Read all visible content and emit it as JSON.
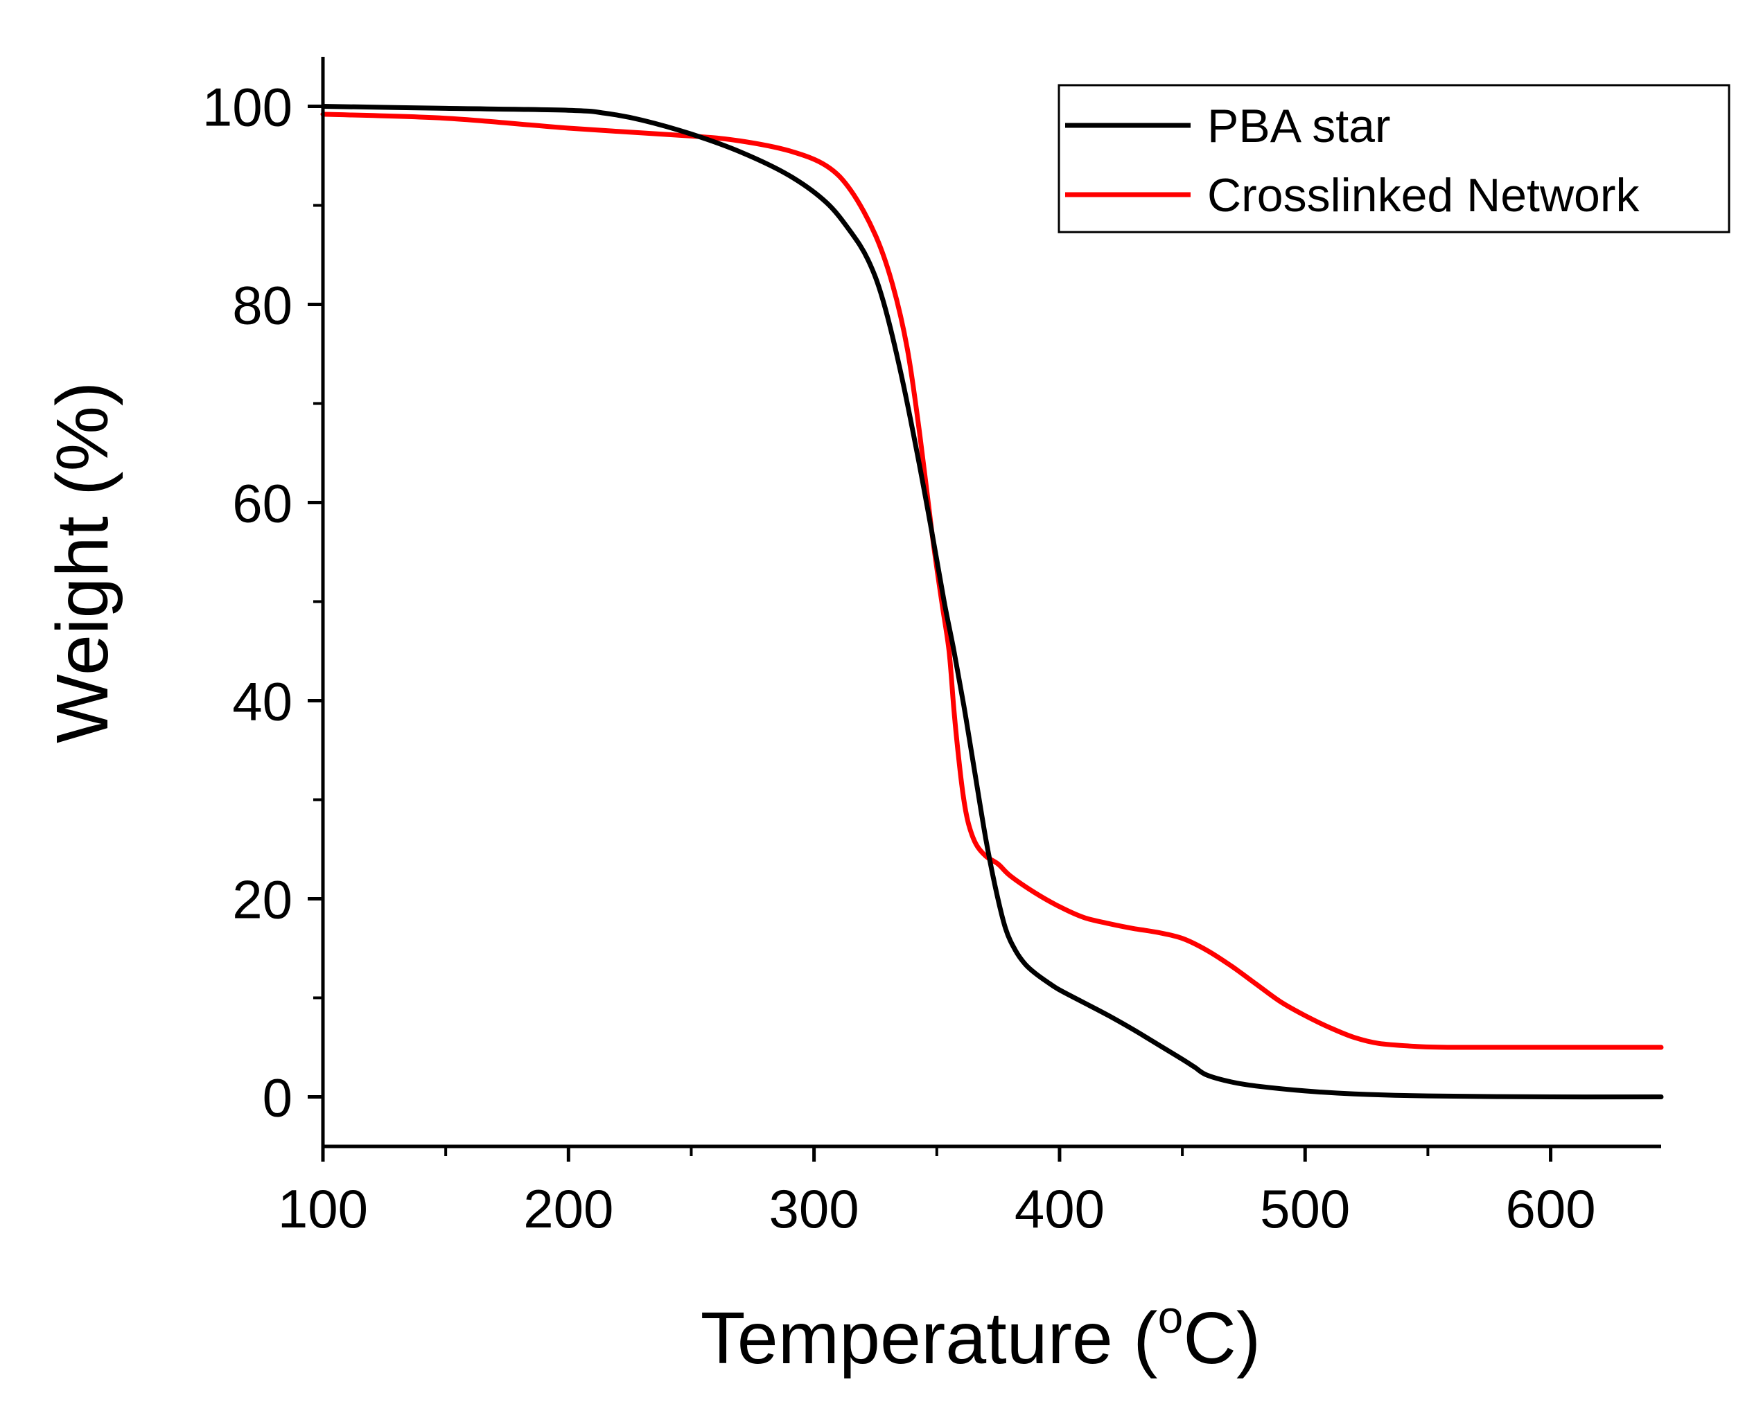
{
  "chart_data": {
    "type": "line",
    "title": "",
    "xlabel_main": "Temperature (",
    "xlabel_sup": "o",
    "xlabel_tail": "C)",
    "ylabel": "Weight (%)",
    "xlim": [
      100,
      645
    ],
    "ylim": [
      -5,
      105
    ],
    "x_ticks": [
      100,
      200,
      300,
      400,
      500,
      600
    ],
    "x_tick_labels": [
      "100",
      "200",
      "300",
      "400",
      "500",
      "600"
    ],
    "y_ticks": [
      0,
      20,
      40,
      60,
      80,
      100
    ],
    "y_tick_labels": [
      "0",
      "20",
      "40",
      "60",
      "80",
      "100"
    ],
    "legend_position": "top-right",
    "series": [
      {
        "name": "PBA star",
        "color": "#000000",
        "x": [
          100,
          150,
          200,
          215,
          230,
          250,
          270,
          290,
          305,
          315,
          322,
          328,
          335,
          342,
          348,
          353,
          357,
          361,
          365,
          370,
          374,
          378,
          382,
          386,
          390,
          395,
          400,
          410,
          420,
          430,
          440,
          450,
          455,
          460,
          470,
          480,
          500,
          520,
          550,
          600,
          645
        ],
        "y": [
          100,
          99.8,
          99.6,
          99.3,
          98.6,
          97.2,
          95.4,
          93.0,
          90.3,
          87.3,
          84.5,
          80.5,
          73.5,
          65.0,
          57.0,
          50.0,
          45.0,
          39.5,
          33.5,
          26.0,
          21.0,
          17.0,
          14.8,
          13.4,
          12.5,
          11.6,
          10.8,
          9.5,
          8.2,
          6.8,
          5.3,
          3.8,
          3.0,
          2.2,
          1.5,
          1.1,
          0.6,
          0.3,
          0.1,
          0.0,
          0.0
        ]
      },
      {
        "name": "Crosslinked Network",
        "color": "#ff0000",
        "x": [
          100,
          150,
          200,
          250,
          270,
          290,
          305,
          315,
          325,
          332,
          338,
          343,
          348,
          352,
          355,
          357,
          359,
          361,
          363,
          366,
          370,
          375,
          380,
          390,
          400,
          410,
          420,
          430,
          440,
          450,
          460,
          470,
          480,
          490,
          500,
          510,
          520,
          530,
          545,
          560,
          600,
          645
        ],
        "y": [
          99.2,
          98.8,
          97.8,
          97.0,
          96.5,
          95.5,
          94.0,
          91.5,
          87.0,
          82.0,
          75.5,
          67.0,
          57.0,
          50.0,
          45.0,
          39.0,
          34.0,
          30.0,
          27.5,
          25.5,
          24.3,
          23.5,
          22.3,
          20.6,
          19.2,
          18.1,
          17.5,
          17.0,
          16.6,
          16.0,
          14.8,
          13.2,
          11.4,
          9.6,
          8.2,
          7.0,
          6.0,
          5.4,
          5.1,
          5.0,
          5.0,
          5.0
        ]
      }
    ]
  }
}
